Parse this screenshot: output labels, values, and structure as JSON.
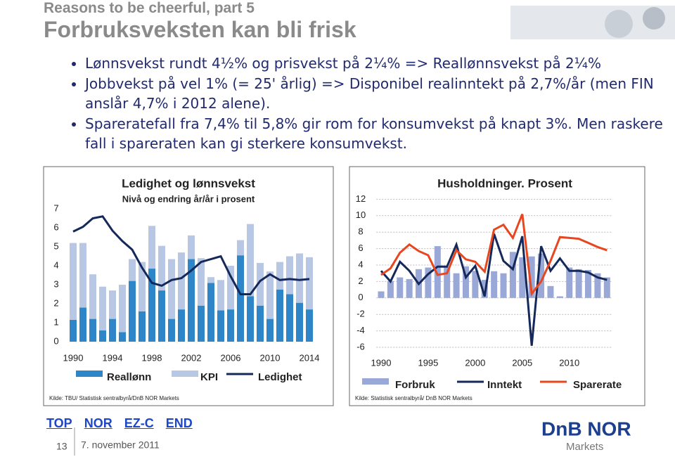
{
  "header": {
    "kicker": "Reasons to be cheerful, part 5",
    "title": "Forbruksveksten kan bli frisk"
  },
  "bullets": [
    "Lønnsvekst rundt 4½% og prisvekst på 2¼% => Reallønnsvekst på 2¼%",
    "Jobbvekst på vel 1% (= 25' årlig) => Disponibel realinntekt på 2,7%/år (men FIN anslår 4,7% i 2012 alene).",
    "Spareratefall fra 7,4% til 5,8% gir rom for konsumvekst på knapt 3%. Men raskere fall i spareraten kan gi sterkere konsumvekst."
  ],
  "chart_data": [
    {
      "type": "bar",
      "stacked": true,
      "title": "Ledighet og lønnsvekst",
      "subtitle": "Nivå og endring år/år i prosent",
      "source": "Kilde: TBU/ Statistisk sentralbyrå/DnB NOR Markets",
      "x": [
        1990,
        1991,
        1992,
        1993,
        1994,
        1995,
        1996,
        1997,
        1998,
        1999,
        2000,
        2001,
        2002,
        2003,
        2004,
        2005,
        2006,
        2007,
        2008,
        2009,
        2010,
        2011,
        2012,
        2013,
        2014
      ],
      "xlim": [
        1989.5,
        2014.5
      ],
      "xticks": [
        1990,
        1994,
        1998,
        2002,
        2006,
        2010,
        2014
      ],
      "ylim": [
        0,
        8
      ],
      "yticks": [
        0,
        1,
        2,
        3,
        4,
        5,
        6,
        7
      ],
      "grid": false,
      "series": [
        {
          "name": "Reallønn",
          "type": "bar",
          "color": "#2e86c8",
          "values": [
            1.15,
            1.8,
            1.2,
            0.6,
            1.2,
            0.5,
            3.2,
            1.6,
            3.85,
            2.7,
            1.2,
            1.7,
            4.35,
            1.9,
            3.1,
            1.65,
            1.7,
            4.55,
            2.4,
            1.9,
            1.2,
            2.75,
            2.5,
            2.05,
            1.7
          ]
        },
        {
          "name": "KPI",
          "type": "bar",
          "color": "#b8c8e4",
          "values": [
            4.05,
            3.4,
            2.35,
            2.3,
            1.5,
            2.5,
            1.15,
            2.6,
            2.25,
            2.35,
            3.15,
            3.0,
            1.25,
            2.5,
            0.3,
            1.6,
            2.3,
            0.8,
            3.8,
            2.25,
            2.5,
            1.45,
            2.0,
            2.6,
            2.75
          ]
        },
        {
          "name": "Ledighet",
          "type": "line",
          "color": "#14285a",
          "values": [
            5.8,
            6.05,
            6.5,
            6.6,
            5.85,
            5.3,
            4.85,
            3.9,
            3.1,
            2.95,
            3.25,
            3.35,
            3.75,
            4.2,
            4.35,
            4.5,
            3.45,
            2.5,
            2.5,
            3.2,
            3.55,
            3.25,
            3.3,
            3.25,
            3.3
          ]
        }
      ]
    },
    {
      "type": "bar",
      "stacked": false,
      "title": "Husholdninger. Prosent",
      "source": "Kilde: Statistisk sentralbyrå/ DnB NOR Markets",
      "x": [
        1990,
        1991,
        1992,
        1993,
        1994,
        1995,
        1996,
        1997,
        1998,
        1999,
        2000,
        2001,
        2002,
        2003,
        2004,
        2005,
        2006,
        2007,
        2008,
        2009,
        2010,
        2011,
        2012,
        2013,
        2014
      ],
      "xlim": [
        1989.5,
        2014.5
      ],
      "xticks": [
        1990,
        1995,
        2000,
        2005,
        2010
      ],
      "ylim": [
        -6,
        14
      ],
      "yticks": [
        -6,
        -4,
        -2,
        0,
        2,
        4,
        6,
        8,
        10,
        12
      ],
      "grid": true,
      "series": [
        {
          "name": "Forbruk",
          "type": "bar",
          "color": "#9aa8d8",
          "values": [
            0.8,
            2.05,
            2.5,
            2.3,
            3.5,
            3.7,
            6.3,
            3.75,
            3.0,
            3.85,
            3.3,
            2.2,
            3.25,
            3.0,
            5.6,
            4.95,
            5.05,
            5.4,
            1.45,
            0.2,
            3.7,
            3.5,
            3.4,
            3.0,
            2.5
          ]
        },
        {
          "name": "Inntekt",
          "type": "line",
          "color": "#14285a",
          "values": [
            3.3,
            2.0,
            4.4,
            3.3,
            1.7,
            2.9,
            3.8,
            3.8,
            6.5,
            2.5,
            3.9,
            0.2,
            7.8,
            4.5,
            3.5,
            7.5,
            -5.8,
            6.3,
            3.3,
            4.8,
            3.3,
            3.3,
            3.1,
            2.5,
            2.2
          ]
        },
        {
          "name": "Sparerate",
          "type": "line",
          "color": "#e8461e",
          "values": [
            2.8,
            3.6,
            5.5,
            6.5,
            5.7,
            5.2,
            2.8,
            3.0,
            5.8,
            4.7,
            4.4,
            3.2,
            8.3,
            8.9,
            7.3,
            10.2,
            0.5,
            2.0,
            4.5,
            7.4,
            7.3,
            7.2,
            6.7,
            6.2,
            5.8
          ]
        }
      ]
    }
  ],
  "footer": {
    "links": [
      "TOP",
      "NOR",
      "EZ-C",
      "END"
    ],
    "page": "13",
    "date": "7. november 2011",
    "logo": "DnB NOR",
    "logo_sub": "Markets"
  }
}
